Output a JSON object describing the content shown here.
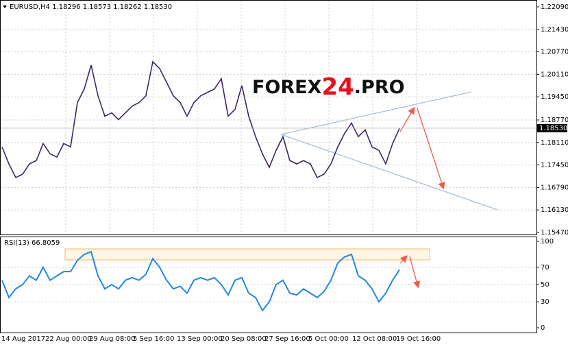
{
  "header": {
    "symbol_info": "EURUSD,H4  1.18296 1.18573 1.18262 1.18530"
  },
  "logo": {
    "part1": "FOREX",
    "part2": "24",
    "part3": ".PRO"
  },
  "x_labels": [
    "14 Aug 2017",
    "22 Aug 00:00",
    "29 Aug 08:00",
    "5 Sep 16:00",
    "13 Sep 00:00",
    "20 Sep 08:00",
    "27 Sep 16:00",
    "5 Oct 00:00",
    "12 Oct 08:00",
    "19 Oct 16:00"
  ],
  "chart_data": [
    {
      "type": "line",
      "color": "#3c2466",
      "ylim": [
        1.1547,
        1.2209
      ],
      "yticks": [
        {
          "value": 1.2209,
          "label": "1.22090"
        },
        {
          "value": 1.2143,
          "label": "1.21430"
        },
        {
          "value": 1.2077,
          "label": "1.20770"
        },
        {
          "value": 1.2011,
          "label": "1.20110"
        },
        {
          "value": 1.1945,
          "label": "1.19450"
        },
        {
          "value": 1.1877,
          "label": "1.18770"
        },
        {
          "value": 1.1811,
          "label": "1.18110"
        },
        {
          "value": 1.1745,
          "label": "1.17450"
        },
        {
          "value": 1.1679,
          "label": "1.16790"
        },
        {
          "value": 1.1613,
          "label": "1.16130"
        },
        {
          "value": 1.1547,
          "label": "1.15470"
        }
      ],
      "last_price": {
        "value": 1.1853,
        "label": "1.18530"
      },
      "values": [
        1.1798,
        1.1748,
        1.1708,
        1.1718,
        1.1748,
        1.1758,
        1.1808,
        1.1778,
        1.1768,
        1.1808,
        1.1798,
        1.1928,
        1.1968,
        1.2038,
        1.1948,
        1.1888,
        1.1898,
        1.1878,
        1.1898,
        1.1918,
        1.1928,
        1.1948,
        1.2048,
        1.2028,
        1.1988,
        1.1948,
        1.1928,
        1.1888,
        1.1928,
        1.1948,
        1.1958,
        1.1968,
        1.1998,
        1.1888,
        1.1908,
        1.1978,
        1.1888,
        1.1828,
        1.1778,
        1.1738,
        1.1788,
        1.1828,
        1.1758,
        1.1748,
        1.1758,
        1.1748,
        1.1708,
        1.1718,
        1.1748,
        1.1798,
        1.1838,
        1.1868,
        1.1828,
        1.1848,
        1.1798,
        1.1788,
        1.1748,
        1.1808,
        1.1852
      ]
    },
    {
      "type": "line",
      "title": "RSI(13) 66.8059",
      "color": "#1e88e5",
      "ylim": [
        0,
        100
      ],
      "yticks": [
        0,
        30,
        50,
        70,
        100
      ],
      "values": [
        55,
        35,
        45,
        50,
        60,
        55,
        70,
        55,
        60,
        65,
        65,
        78,
        85,
        88,
        60,
        45,
        50,
        45,
        55,
        58,
        55,
        62,
        80,
        70,
        55,
        45,
        48,
        40,
        55,
        58,
        55,
        58,
        50,
        38,
        55,
        58,
        40,
        35,
        20,
        30,
        50,
        55,
        40,
        38,
        45,
        40,
        35,
        42,
        55,
        75,
        82,
        85,
        60,
        55,
        45,
        30,
        40,
        55,
        67
      ]
    }
  ]
}
